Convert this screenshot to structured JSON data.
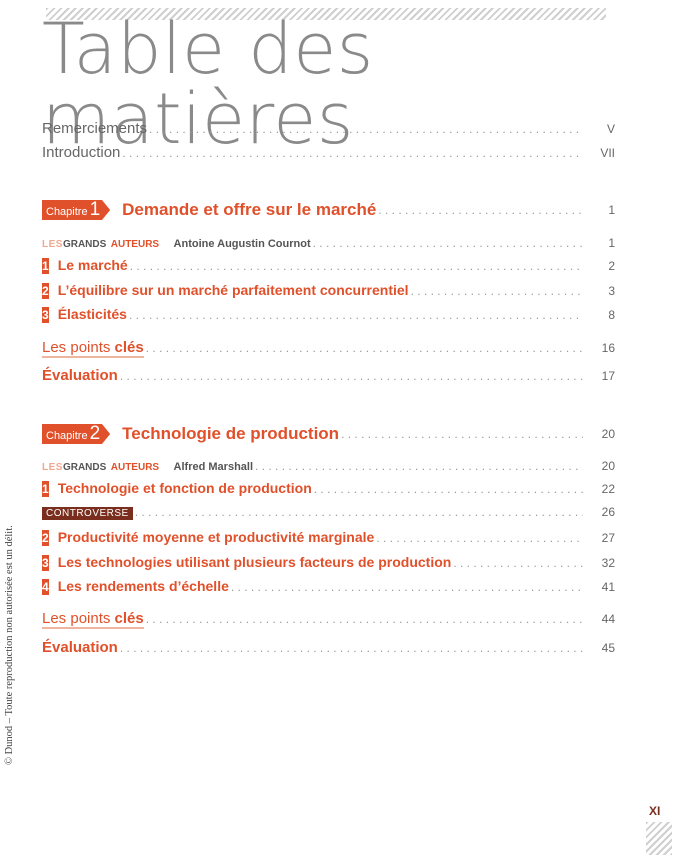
{
  "title": "Table des matières",
  "front": [
    {
      "label": "Remerciements",
      "page": "V"
    },
    {
      "label": "Introduction",
      "page": "VII"
    }
  ],
  "grands_auteurs": {
    "les": "LES",
    "grands": "GRANDS",
    "auteurs": "AUTEURS"
  },
  "controverse_label": "CONTROVERSE",
  "chapters": [
    {
      "badge_word": "Chapitre",
      "badge_num": "1",
      "title": "Demande et offre sur le marché",
      "page": "1",
      "author": "Antoine Augustin Cournot",
      "author_page": "1",
      "sections": [
        {
          "num": "1",
          "title": "Le marché",
          "page": "2"
        },
        {
          "num": "2",
          "title": "L’équilibre sur un marché parfaitement concurrentiel",
          "page": "3"
        },
        {
          "num": "3",
          "title": "Élasticités",
          "page": "8"
        }
      ],
      "points_cles": {
        "light": "Les points ",
        "bold": "clés",
        "page": "16"
      },
      "evaluation": {
        "label": "Évaluation",
        "page": "17"
      }
    },
    {
      "badge_word": "Chapitre",
      "badge_num": "2",
      "title": "Technologie de production",
      "page": "20",
      "author": "Alfred Marshall",
      "author_page": "20",
      "sections": [
        {
          "num": "1",
          "title": "Technologie et fonction de production",
          "page": "22"
        },
        {
          "num": "2",
          "title": "Productivité moyenne et productivité marginale",
          "page": "27"
        },
        {
          "num": "3",
          "title": "Les technologies utilisant plusieurs facteurs de production",
          "page": "32"
        },
        {
          "num": "4",
          "title": "Les rendements d’échelle",
          "page": "41"
        }
      ],
      "controverse_page": "26",
      "points_cles": {
        "light": "Les points ",
        "bold": "clés",
        "page": "44"
      },
      "evaluation": {
        "label": "Évaluation",
        "page": "45"
      }
    }
  ],
  "side_note": "© Dunod – Toute reproduction non autorisée est un délit.",
  "page_number": "XI",
  "colors": {
    "accent": "#e0512b",
    "dark_accent": "#7a2e1e",
    "text": "#555555"
  }
}
